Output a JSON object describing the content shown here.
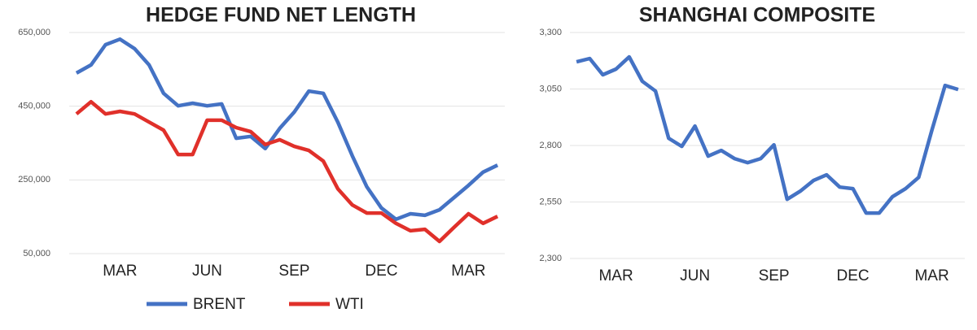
{
  "chart_data": [
    {
      "type": "line",
      "title": "HEDGE FUND NET LENGTH",
      "categories": [
        null,
        null,
        null,
        "MAR",
        null,
        null,
        null,
        null,
        null,
        "JUN",
        null,
        null,
        null,
        null,
        null,
        "SEP",
        null,
        null,
        null,
        null,
        null,
        "DEC",
        null,
        null,
        null,
        null,
        null,
        "MAR",
        null,
        null
      ],
      "series": [
        {
          "name": "BRENT",
          "color": "#4472c4",
          "values": [
            540000,
            562000,
            617000,
            632000,
            606000,
            562000,
            485000,
            451000,
            458000,
            451000,
            456000,
            363000,
            368000,
            335000,
            390000,
            434000,
            491000,
            485000,
            407000,
            315000,
            231000,
            174000,
            143000,
            158000,
            154000,
            169000,
            202000,
            235000,
            271000,
            290000
          ]
        },
        {
          "name": "WTI",
          "color": "#e0302a",
          "values": [
            429000,
            462000,
            429000,
            436000,
            429000,
            407000,
            385000,
            319000,
            319000,
            412000,
            412000,
            392000,
            381000,
            346000,
            359000,
            341000,
            330000,
            301000,
            226000,
            182000,
            160000,
            160000,
            132000,
            112000,
            116000,
            83000,
            121000,
            158000,
            132000,
            151000
          ]
        }
      ],
      "ylim": [
        50000,
        650000
      ],
      "yticks": [
        {
          "value": 50000,
          "label": "50,000"
        },
        {
          "value": 250000,
          "label": "250,000"
        },
        {
          "value": 450000,
          "label": "450,000"
        },
        {
          "value": 650000,
          "label": "650,000"
        }
      ],
      "grid": true,
      "legend": "bottom"
    },
    {
      "type": "line",
      "title": "SHANGHAI COMPOSITE",
      "categories": [
        null,
        null,
        null,
        "MAR",
        null,
        null,
        null,
        null,
        null,
        "JUN",
        null,
        null,
        null,
        null,
        null,
        "SEP",
        null,
        null,
        null,
        null,
        null,
        "DEC",
        null,
        null,
        null,
        null,
        null,
        "MAR",
        null,
        null
      ],
      "values": [
        3170,
        3185,
        3113,
        3138,
        3192,
        3084,
        3041,
        2832,
        2796,
        2886,
        2753,
        2778,
        2742,
        2724,
        2742,
        2803,
        2562,
        2598,
        2645,
        2670,
        2616,
        2609,
        2501,
        2501,
        2573,
        2609,
        2659,
        2868,
        3066,
        3048
      ],
      "color": "#4472c4",
      "ylim": [
        2300,
        3300
      ],
      "yticks": [
        {
          "value": 2300,
          "label": "2,300"
        },
        {
          "value": 2550,
          "label": "2,550"
        },
        {
          "value": 2800,
          "label": "2,800"
        },
        {
          "value": 3050,
          "label": "3,050"
        },
        {
          "value": 3300,
          "label": "3,300"
        }
      ],
      "grid": true
    }
  ]
}
